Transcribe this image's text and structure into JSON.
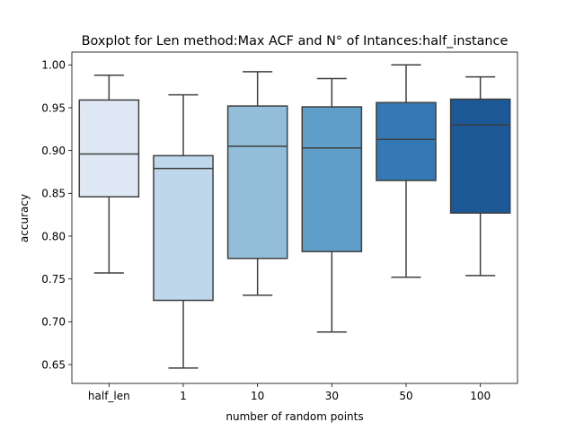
{
  "chart_data": {
    "type": "box",
    "title": "Boxplot for Len method:Max ACF and N° of Intances:half_instance",
    "xlabel": "number of random points",
    "ylabel": "accuracy",
    "ylim": [
      0.628,
      1.015
    ],
    "yticks": [
      "0.65",
      "0.70",
      "0.75",
      "0.80",
      "0.85",
      "0.90",
      "0.95",
      "1.00"
    ],
    "categories": [
      "half_len",
      "1",
      "10",
      "30",
      "50",
      "100"
    ],
    "colors": [
      "#dfe9f5",
      "#bfd7ea",
      "#93bed9",
      "#5f9ec8",
      "#3479b5",
      "#1c5796"
    ],
    "edge_color": "#3f3f3f",
    "boxes": [
      {
        "category": "half_len",
        "whisker_low": 0.757,
        "q1": 0.846,
        "median": 0.896,
        "q3": 0.959,
        "whisker_high": 0.988
      },
      {
        "category": "1",
        "whisker_low": 0.646,
        "q1": 0.725,
        "median": 0.879,
        "q3": 0.894,
        "whisker_high": 0.965
      },
      {
        "category": "10",
        "whisker_low": 0.731,
        "q1": 0.774,
        "median": 0.905,
        "q3": 0.952,
        "whisker_high": 0.992
      },
      {
        "category": "30",
        "whisker_low": 0.688,
        "q1": 0.782,
        "median": 0.903,
        "q3": 0.951,
        "whisker_high": 0.984
      },
      {
        "category": "50",
        "whisker_low": 0.752,
        "q1": 0.865,
        "median": 0.913,
        "q3": 0.956,
        "whisker_high": 1.0
      },
      {
        "category": "100",
        "whisker_low": 0.754,
        "q1": 0.827,
        "median": 0.93,
        "q3": 0.96,
        "whisker_high": 0.986
      }
    ],
    "grid": false,
    "legend": "none"
  }
}
